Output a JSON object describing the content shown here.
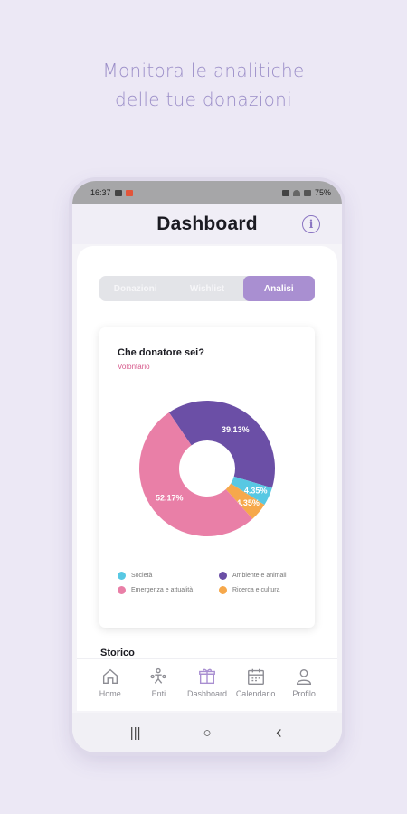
{
  "promo": {
    "line1": "Monitora le analitiche",
    "line2": "delle tue donazioni"
  },
  "statusbar": {
    "time": "16:37",
    "battery": "75%"
  },
  "header": {
    "title": "Dashboard",
    "info_icon": "info-icon"
  },
  "segmented": {
    "tabs": [
      "Donazioni",
      "Wishlist",
      "Analisi"
    ],
    "active_index": 2
  },
  "card": {
    "title": "Che donatore sei?",
    "subtitle": "Volontario"
  },
  "chart_data": {
    "type": "pie",
    "categories": [
      "Ambiente e animali",
      "Società",
      "Ricerca e cultura",
      "Emergenza e attualità"
    ],
    "values": [
      39.13,
      4.35,
      4.35,
      52.17
    ],
    "labels": [
      "39.13%",
      "4.35%",
      "4.35%",
      "52.17%"
    ],
    "colors": [
      "#6b4fa6",
      "#58c8e3",
      "#f6a84b",
      "#e97fa7"
    ],
    "donut": true,
    "legend": [
      {
        "label": "Società",
        "color": "#58c8e3"
      },
      {
        "label": "Ambiente e animali",
        "color": "#6b4fa6"
      },
      {
        "label": "Emergenza e attualità",
        "color": "#e97fa7"
      },
      {
        "label": "Ricerca e cultura",
        "color": "#f6a84b"
      }
    ]
  },
  "peek_title": "Storico",
  "tabbar": {
    "items": [
      {
        "label": "Home",
        "icon": "home-icon"
      },
      {
        "label": "Enti",
        "icon": "people-icon"
      },
      {
        "label": "Dashboard",
        "icon": "gift-icon"
      },
      {
        "label": "Calendario",
        "icon": "calendar-icon"
      },
      {
        "label": "Profilo",
        "icon": "user-icon"
      }
    ]
  },
  "navbar": {
    "recents": "|||",
    "home": "○",
    "back": "‹"
  }
}
